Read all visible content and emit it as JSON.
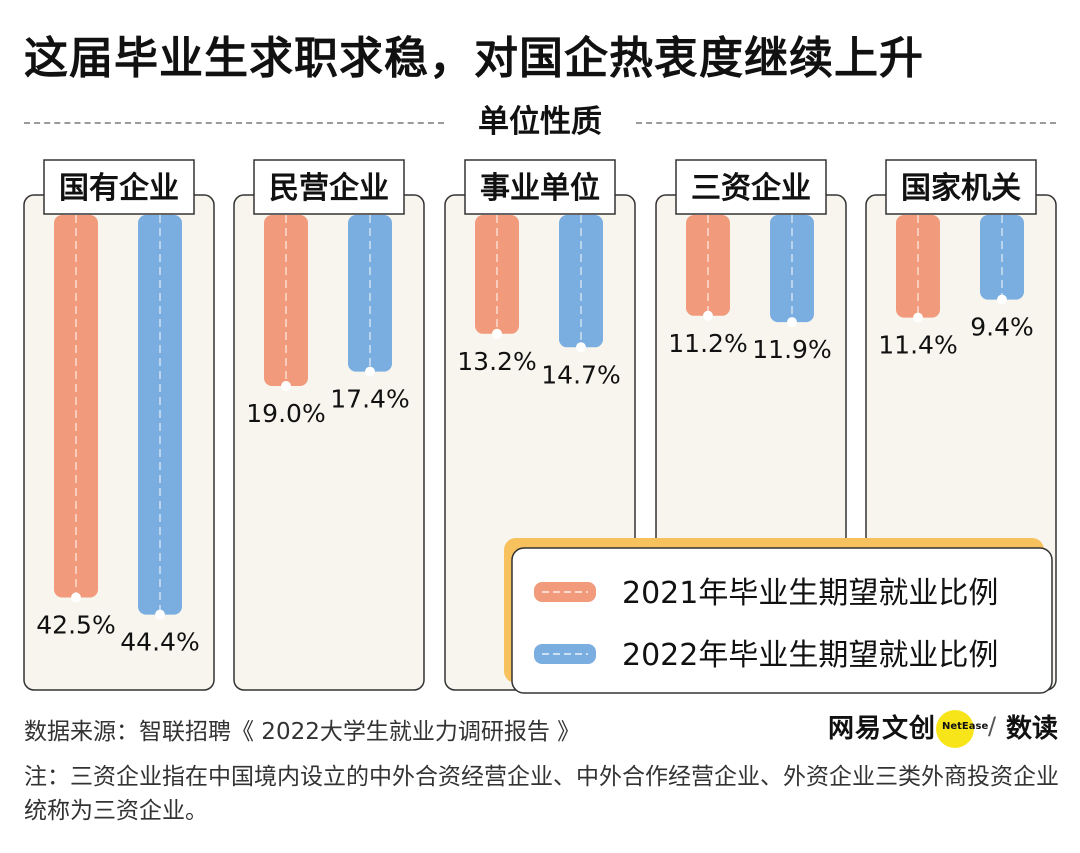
{
  "title": "这届毕业生求职求稳，对国企热衷度继续上升",
  "subtitle": "单位性质",
  "colors": {
    "series2021": "#f29b7c",
    "series2022": "#7aaee0",
    "legendShadow": "#f7c15e"
  },
  "chart_data": {
    "type": "bar",
    "categories": [
      "国有企业",
      "民营企业",
      "事业单位",
      "三资企业",
      "国家机关"
    ],
    "series": [
      {
        "name": "2021年毕业生期望就业比例",
        "values": [
          42.5,
          19.0,
          13.2,
          11.2,
          11.4
        ],
        "labels": [
          "42.5%",
          "19.0%",
          "13.2%",
          "11.2%",
          "11.4%"
        ]
      },
      {
        "name": "2022年毕业生期望就业比例",
        "values": [
          44.4,
          17.4,
          14.7,
          11.9,
          9.4
        ],
        "labels": [
          "44.4%",
          "17.4%",
          "14.7%",
          "11.9%",
          "9.4%"
        ]
      }
    ],
    "unit": "%",
    "ylim": [
      0,
      50
    ]
  },
  "source": "数据来源：智联招聘《 2022大学生就业力调研报告 》",
  "note": "注：三资企业指在中国境内设立的中外合资经营企业、中外合作经营企业、外资企业三类外商投资企业统称为三资企业。",
  "brand": {
    "name": "网易文创",
    "en": "NetEase",
    "sub": "数读"
  }
}
